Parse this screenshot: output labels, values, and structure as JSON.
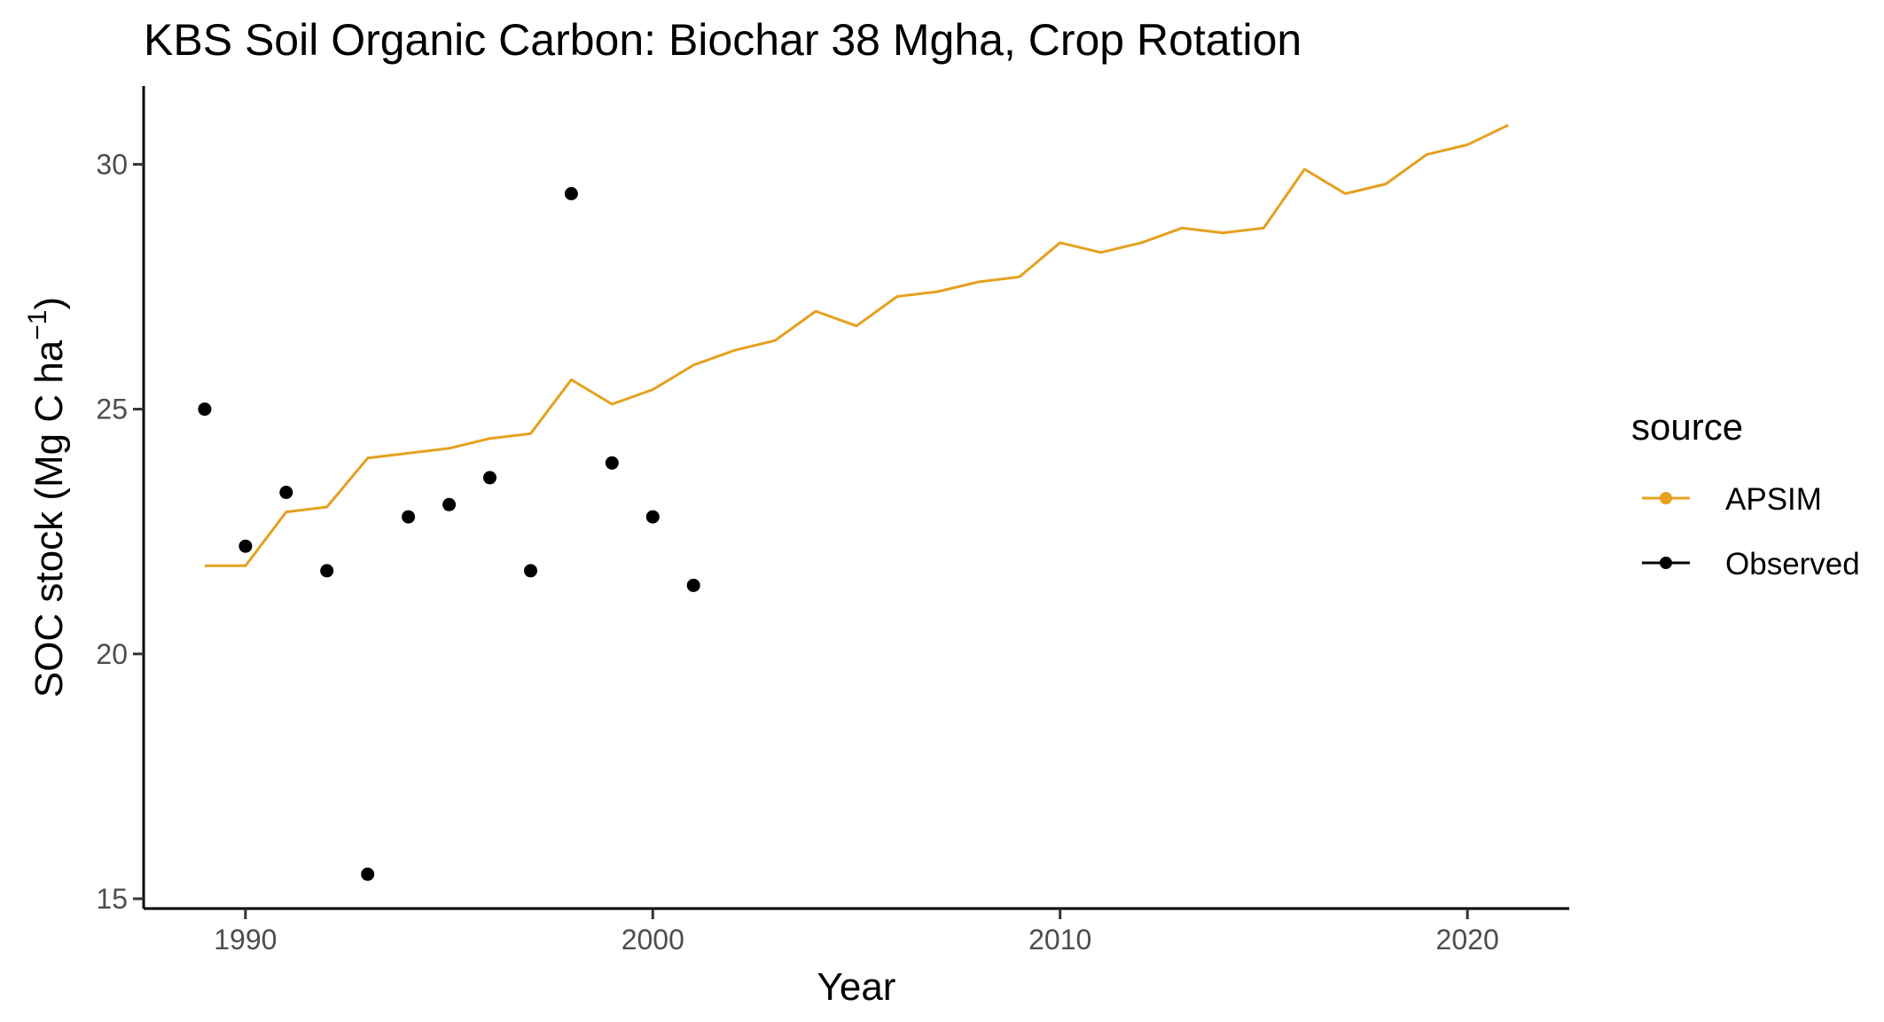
{
  "chart_data": {
    "type": "line",
    "title": "KBS Soil Organic Carbon:  Biochar 38 Mgha, Crop Rotation",
    "xlabel": "Year",
    "ylabel_main": "SOC stock (Mg C ha",
    "ylabel_sup": "−1",
    "ylabel_close": ")",
    "xlim": [
      1987.5,
      2022.5
    ],
    "ylim": [
      14.8,
      31.6
    ],
    "x_ticks": [
      1990,
      2000,
      2010,
      2020
    ],
    "y_ticks": [
      15,
      20,
      25,
      30
    ],
    "grid": false,
    "legend": {
      "title": "source",
      "placement": "right",
      "items": [
        {
          "label": "APSIM",
          "color": "#E6A01E"
        },
        {
          "label": "Observed",
          "color": "#000000"
        }
      ]
    },
    "series": [
      {
        "name": "APSIM",
        "kind": "line",
        "color": "#E6A01E",
        "x": [
          1989,
          1990,
          1991,
          1992,
          1993,
          1994,
          1995,
          1996,
          1997,
          1998,
          1999,
          2000,
          2001,
          2002,
          2003,
          2004,
          2005,
          2006,
          2007,
          2008,
          2009,
          2010,
          2011,
          2012,
          2013,
          2014,
          2015,
          2016,
          2017,
          2018,
          2019,
          2020,
          2021
        ],
        "y": [
          21.8,
          21.8,
          22.9,
          23.0,
          24.0,
          24.1,
          24.2,
          24.4,
          24.5,
          25.6,
          25.1,
          25.4,
          25.9,
          26.2,
          26.4,
          27.0,
          26.7,
          27.3,
          27.4,
          27.6,
          27.7,
          28.4,
          28.2,
          28.4,
          28.7,
          28.6,
          28.7,
          29.9,
          29.4,
          29.6,
          30.2,
          30.4,
          30.8
        ]
      },
      {
        "name": "Observed",
        "kind": "points",
        "color": "#000000",
        "x": [
          1989,
          1990,
          1991,
          1992,
          1993,
          1994,
          1995,
          1996,
          1997,
          1998,
          1999,
          2000,
          2001
        ],
        "y": [
          25.0,
          22.2,
          23.3,
          21.7,
          15.5,
          22.8,
          23.05,
          23.6,
          21.7,
          29.4,
          23.9,
          22.8,
          21.4
        ]
      }
    ]
  }
}
